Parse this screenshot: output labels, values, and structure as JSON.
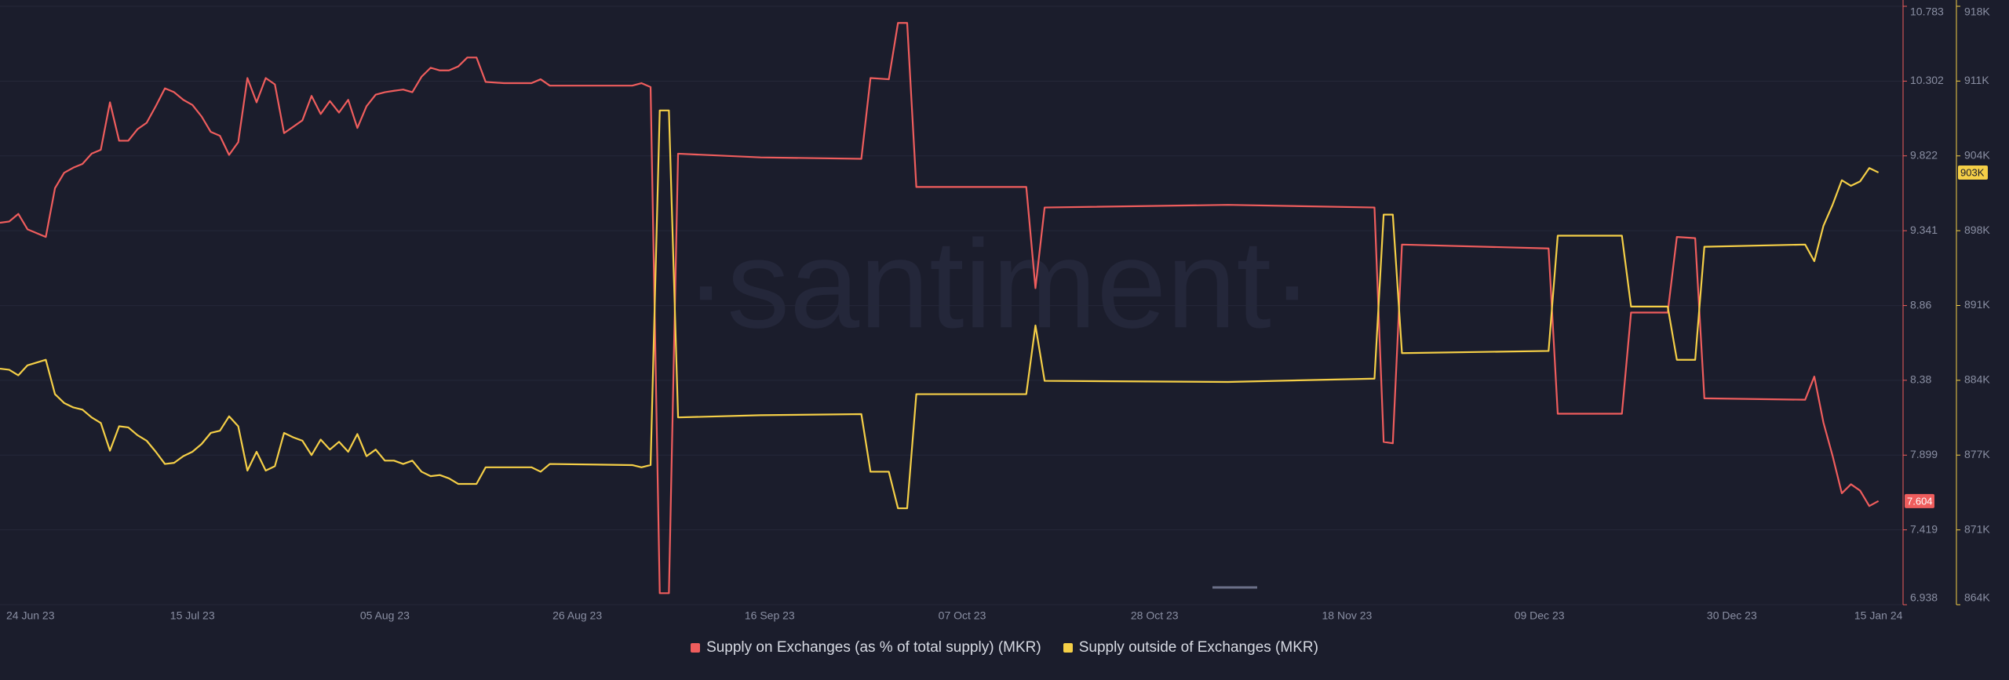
{
  "chart_data": {
    "type": "line",
    "watermark": "·santiment·",
    "x": [
      "2023-06-24",
      "2023-06-25",
      "2023-06-26",
      "2023-06-27",
      "2023-06-29",
      "2023-06-30",
      "2023-07-01",
      "2023-07-02",
      "2023-07-03",
      "2023-07-04",
      "2023-07-05",
      "2023-07-06",
      "2023-07-07",
      "2023-07-08",
      "2023-07-09",
      "2023-07-10",
      "2023-07-11",
      "2023-07-12",
      "2023-07-13",
      "2023-07-14",
      "2023-07-15",
      "2023-07-16",
      "2023-07-17",
      "2023-07-18",
      "2023-07-19",
      "2023-07-20",
      "2023-07-21",
      "2023-07-22",
      "2023-07-23",
      "2023-07-24",
      "2023-07-25",
      "2023-07-26",
      "2023-07-27",
      "2023-07-28",
      "2023-07-29",
      "2023-07-30",
      "2023-07-31",
      "2023-08-01",
      "2023-08-02",
      "2023-08-03",
      "2023-08-04",
      "2023-08-05",
      "2023-08-06",
      "2023-08-07",
      "2023-08-08",
      "2023-08-09",
      "2023-08-10",
      "2023-08-11",
      "2023-08-12",
      "2023-08-13",
      "2023-08-14",
      "2023-08-15",
      "2023-08-16",
      "2023-08-18",
      "2023-08-21",
      "2023-08-22",
      "2023-08-23",
      "2023-09-01",
      "2023-09-02",
      "2023-09-03",
      "2023-09-04",
      "2023-09-05",
      "2023-09-06",
      "2023-09-15",
      "2023-09-26",
      "2023-09-27",
      "2023-09-29",
      "2023-09-30",
      "2023-10-01",
      "2023-10-02",
      "2023-10-14",
      "2023-10-15",
      "2023-10-16",
      "2023-11-05",
      "2023-11-21",
      "2023-11-22",
      "2023-11-23",
      "2023-11-24",
      "2023-12-10",
      "2023-12-11",
      "2023-12-18",
      "2023-12-19",
      "2023-12-23",
      "2023-12-24",
      "2023-12-26",
      "2023-12-27",
      "2024-01-07",
      "2024-01-08",
      "2024-01-09",
      "2024-01-10",
      "2024-01-11",
      "2024-01-12",
      "2024-01-13",
      "2024-01-14",
      "2024-01-15"
    ],
    "xlim": [
      "2023-06-24",
      "2024-01-17"
    ],
    "xticks": [
      {
        "value": "2023-06-24",
        "label": "24 Jun 23"
      },
      {
        "value": "2023-07-15",
        "label": "15 Jul 23"
      },
      {
        "value": "2023-08-05",
        "label": "05 Aug 23"
      },
      {
        "value": "2023-08-26",
        "label": "26 Aug 23"
      },
      {
        "value": "2023-09-16",
        "label": "16 Sep 23"
      },
      {
        "value": "2023-10-07",
        "label": "07 Oct 23"
      },
      {
        "value": "2023-10-28",
        "label": "28 Oct 23"
      },
      {
        "value": "2023-11-18",
        "label": "18 Nov 23"
      },
      {
        "value": "2023-12-09",
        "label": "09 Dec 23"
      },
      {
        "value": "2023-12-30",
        "label": "30 Dec 23"
      },
      {
        "value": "2024-01-15",
        "label": "15 Jan 24"
      }
    ],
    "ylim": [
      6.938,
      10.783
    ],
    "yticks": [
      6.938,
      7.419,
      7.899,
      8.38,
      8.86,
      9.341,
      9.822,
      10.302,
      10.783
    ],
    "y2lim": [
      864000,
      918000
    ],
    "y2ticks": [
      {
        "value": 864000,
        "label": "864K"
      },
      {
        "value": 870750,
        "label": "871K"
      },
      {
        "value": 877500,
        "label": "877K"
      },
      {
        "value": 884250,
        "label": "884K"
      },
      {
        "value": 891000,
        "label": "891K"
      },
      {
        "value": 897750,
        "label": "898K"
      },
      {
        "value": 904500,
        "label": "904K"
      },
      {
        "value": 911250,
        "label": "911K"
      },
      {
        "value": 918000,
        "label": "918K"
      }
    ],
    "grid": true,
    "legend": "bottom",
    "series": [
      {
        "name": "Supply on Exchanges (as % of total supply) (MKR)",
        "color": "#ef5d5d",
        "axis": "y",
        "last_value_label": "7.604",
        "values": [
          9.392,
          9.4,
          9.449,
          9.35,
          9.301,
          9.614,
          9.713,
          9.746,
          9.77,
          9.836,
          9.861,
          10.166,
          9.919,
          9.919,
          9.993,
          10.034,
          10.141,
          10.256,
          10.231,
          10.182,
          10.149,
          10.075,
          9.976,
          9.951,
          9.828,
          9.91,
          10.322,
          10.166,
          10.322,
          10.281,
          9.968,
          10.009,
          10.05,
          10.207,
          10.091,
          10.174,
          10.1,
          10.182,
          10.001,
          10.141,
          10.215,
          10.231,
          10.24,
          10.248,
          10.231,
          10.33,
          10.388,
          10.371,
          10.371,
          10.396,
          10.454,
          10.454,
          10.297,
          10.289,
          10.289,
          10.314,
          10.273,
          10.273,
          10.289,
          10.264,
          7.012,
          7.012,
          9.836,
          9.812,
          9.803,
          10.322,
          10.314,
          10.676,
          10.676,
          9.622,
          9.622,
          8.972,
          9.49,
          9.507,
          9.49,
          7.984,
          7.975,
          9.252,
          9.227,
          8.165,
          8.165,
          8.815,
          8.815,
          9.301,
          9.293,
          8.264,
          8.255,
          8.404,
          8.107,
          7.893,
          7.654,
          7.712,
          7.671,
          7.572,
          7.604
        ]
      },
      {
        "name": "Supply outside of Exchanges (MKR)",
        "color": "#f5cf47",
        "axis": "y2",
        "last_value_label": "903K",
        "values": [
          885300,
          885200,
          884700,
          885600,
          886100,
          883000,
          882200,
          881800,
          881600,
          880900,
          880400,
          877900,
          880100,
          880000,
          879300,
          878800,
          877800,
          876700,
          876800,
          877400,
          877800,
          878500,
          879500,
          879700,
          881000,
          880100,
          876100,
          877800,
          876100,
          876500,
          879500,
          879100,
          878800,
          877500,
          878900,
          878000,
          878700,
          877800,
          879400,
          877400,
          878000,
          877000,
          877000,
          876700,
          877000,
          876000,
          875600,
          875700,
          875400,
          874900,
          874900,
          874900,
          876400,
          876400,
          876400,
          876000,
          876700,
          876600,
          876400,
          876600,
          908600,
          908600,
          880900,
          881100,
          881200,
          876000,
          876000,
          872700,
          872700,
          883000,
          883000,
          889200,
          884200,
          884100,
          884400,
          899200,
          899200,
          886700,
          886900,
          897300,
          897300,
          890900,
          890900,
          886100,
          886100,
          896300,
          896500,
          895000,
          898200,
          900100,
          902300,
          901800,
          902200,
          903400,
          903000
        ]
      }
    ]
  }
}
